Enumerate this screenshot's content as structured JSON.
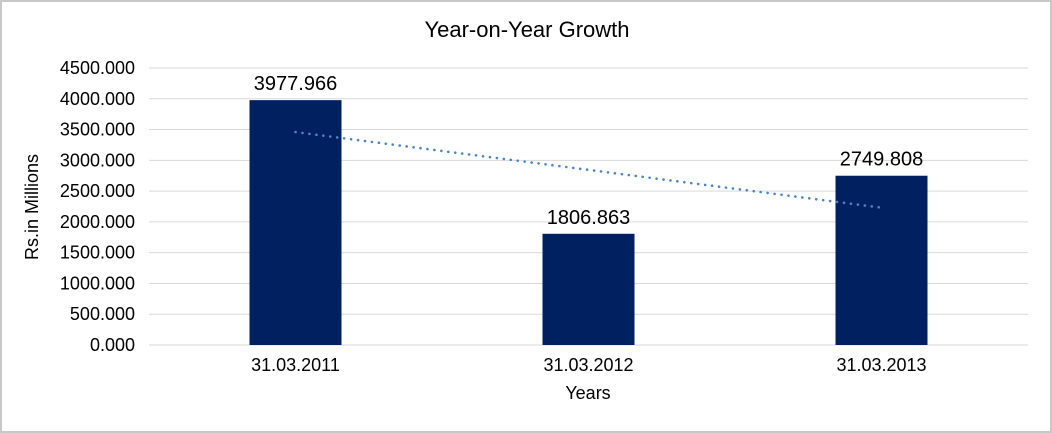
{
  "chart_data": {
    "type": "bar",
    "title": "Year-on-Year Growth",
    "xlabel": "Years",
    "ylabel": "Rs.in Millions",
    "categories": [
      "31.03.2011",
      "31.03.2012",
      "31.03.2013"
    ],
    "values": [
      3977.966,
      1806.863,
      2749.808
    ],
    "data_labels": [
      "3977.966",
      "1806.863",
      "2749.808"
    ],
    "ylim": [
      0,
      4500
    ],
    "y_ticks": {
      "values": [
        0,
        500,
        1000,
        1500,
        2000,
        2500,
        3000,
        3500,
        4000,
        4500
      ],
      "labels": [
        "0.000",
        "500.000",
        "1000.000",
        "1500.000",
        "2000.000",
        "2500.000",
        "3000.000",
        "3500.000",
        "4000.000",
        "4500.000"
      ]
    },
    "grid": true,
    "legend": "none",
    "trendline": {
      "type": "linear",
      "style": "dotted",
      "start_value": 3459,
      "end_value": 2231
    },
    "colors": {
      "bar": "#002060",
      "trendline": "#4c84c4",
      "gridline": "#d9d9d9",
      "text": "#000000",
      "frame_border": "#c8c8c8",
      "background": "#ffffff"
    }
  }
}
